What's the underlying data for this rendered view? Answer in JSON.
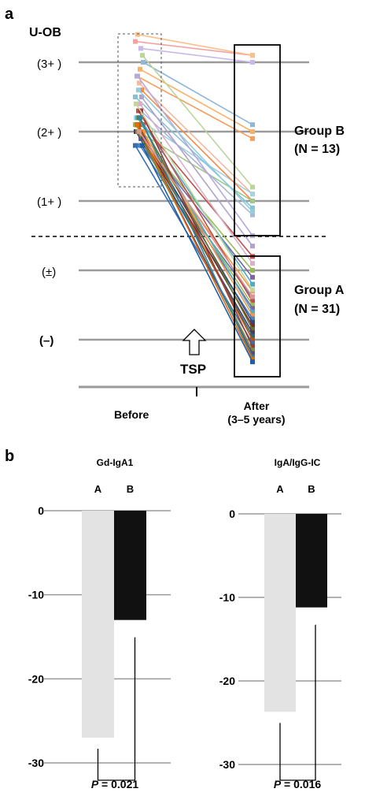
{
  "panel_a": {
    "letter": "a",
    "yaxis_title": "U-OB",
    "levels": [
      "(3+ )",
      "(2+ )",
      "(1+ )",
      "(±)",
      "(–)"
    ],
    "x_categories": [
      "Before",
      "After"
    ],
    "after_sub": "(3–5 years)",
    "tsp_label": "TSP",
    "group_b": {
      "name": "Group B",
      "n": "(N = 13)"
    },
    "group_a": {
      "name": "Group A",
      "n": "(N = 31)"
    }
  },
  "panel_b": {
    "letter": "b"
  },
  "chart_data": [
    {
      "type": "line",
      "title": "",
      "ylabel": "U-OB",
      "categories": [
        "Before",
        "After"
      ],
      "y_scale": [
        "(–)",
        "(±)",
        "(1+ )",
        "(2+ )",
        "(3+ )"
      ],
      "y_numeric": {
        "(–)": 0,
        "(±)": 1,
        "(1+ )": 2,
        "(2+ )": 3,
        "(3+ )": 4
      },
      "series": [
        {
          "values": [
            4.3,
            4.1
          ],
          "color": "#f4a3a3"
        },
        {
          "values": [
            4.2,
            4.0
          ],
          "color": "#c9b8e8"
        },
        {
          "values": [
            4.4,
            4.1
          ],
          "color": "#fbbf8a"
        },
        {
          "values": [
            4.0,
            3.1
          ],
          "color": "#8fb6dc"
        },
        {
          "values": [
            3.9,
            3.0
          ],
          "color": "#fbb06a"
        },
        {
          "values": [
            3.8,
            2.9
          ],
          "color": "#f59d5c"
        },
        {
          "values": [
            4.1,
            2.2
          ],
          "color": "#bcd59a"
        },
        {
          "values": [
            3.7,
            2.1
          ],
          "color": "#f2b8a0"
        },
        {
          "values": [
            3.2,
            2.1
          ],
          "color": "#a6d3e3"
        },
        {
          "values": [
            3.6,
            2.0
          ],
          "color": "#f58a4a"
        },
        {
          "values": [
            3.0,
            2.0
          ],
          "color": "#9fc88a"
        },
        {
          "values": [
            3.5,
            1.9
          ],
          "color": "#86c3d6"
        },
        {
          "values": [
            3.3,
            1.8
          ],
          "color": "#a8b6d8"
        },
        {
          "values": [
            3.8,
            1.5
          ],
          "color": "#b7a9db"
        },
        {
          "values": [
            3.1,
            1.2
          ],
          "color": "#c0504d"
        },
        {
          "values": [
            3.4,
            1.1
          ],
          "color": "#d7b1c8"
        },
        {
          "values": [
            3.0,
            1.0
          ],
          "color": "#9bbb59"
        },
        {
          "values": [
            2.9,
            0.9
          ],
          "color": "#8064a2"
        },
        {
          "values": [
            3.2,
            0.8
          ],
          "color": "#4bacc6"
        },
        {
          "values": [
            3.0,
            0.7
          ],
          "color": "#f79646"
        },
        {
          "values": [
            2.8,
            0.6
          ],
          "color": "#4f81bd"
        },
        {
          "values": [
            3.3,
            0.55
          ],
          "color": "#c0504d"
        },
        {
          "values": [
            3.1,
            0.5
          ],
          "color": "#9bbb59"
        },
        {
          "values": [
            2.9,
            0.45
          ],
          "color": "#8064a2"
        },
        {
          "values": [
            3.2,
            0.4
          ],
          "color": "#4bacc6"
        },
        {
          "values": [
            3.0,
            0.35
          ],
          "color": "#f79646"
        },
        {
          "values": [
            2.8,
            0.3
          ],
          "color": "#4f81bd"
        },
        {
          "values": [
            3.1,
            0.25
          ],
          "color": "#2c4d75"
        },
        {
          "values": [
            2.9,
            0.2
          ],
          "color": "#772c2a"
        },
        {
          "values": [
            3.2,
            0.15
          ],
          "color": "#5f7530"
        },
        {
          "values": [
            3.0,
            0.1
          ],
          "color": "#4d3b62"
        },
        {
          "values": [
            2.9,
            0.05
          ],
          "color": "#276a7c"
        },
        {
          "values": [
            3.1,
            0.0
          ],
          "color": "#b65708"
        },
        {
          "values": [
            2.8,
            -0.05
          ],
          "color": "#3a6db0"
        },
        {
          "values": [
            3.3,
            -0.1
          ],
          "color": "#9d3b39"
        },
        {
          "values": [
            3.0,
            -0.15
          ],
          "color": "#76923c"
        },
        {
          "values": [
            2.9,
            -0.2
          ],
          "color": "#5f497a"
        },
        {
          "values": [
            3.2,
            -0.25
          ],
          "color": "#31859b"
        },
        {
          "values": [
            3.1,
            -0.28
          ],
          "color": "#e36c09"
        },
        {
          "values": [
            2.8,
            -0.32
          ],
          "color": "#1f5fa6"
        },
        {
          "values": [
            3.0,
            0.62
          ],
          "color": "#d99694"
        },
        {
          "values": [
            3.4,
            0.72
          ],
          "color": "#c3d69b"
        },
        {
          "values": [
            3.5,
            1.35
          ],
          "color": "#b3a2c7"
        },
        {
          "values": [
            3.6,
            1.85
          ],
          "color": "#93cddd"
        }
      ],
      "groups": [
        {
          "name": "Group B",
          "n": 13,
          "after_range": [
            1.5,
            4.1
          ]
        },
        {
          "name": "Group A",
          "n": 31,
          "after_range": [
            -0.35,
            1.35
          ]
        }
      ]
    },
    {
      "type": "bar",
      "title": "Gd-IgA1",
      "categories": [
        "A",
        "B"
      ],
      "values": [
        -27,
        -13
      ],
      "colors": [
        "#e3e3e3",
        "#111111"
      ],
      "ylim": [
        -30,
        0
      ],
      "yticks": [
        0,
        -10,
        -20,
        -30
      ],
      "ytick_labels": [
        "0",
        "-10",
        "-20",
        "-30"
      ],
      "pvalue_prefix": "P",
      "pvalue_text": " = 0.021"
    },
    {
      "type": "bar",
      "title": "IgA/IgG-IC",
      "categories": [
        "A",
        "B"
      ],
      "values": [
        -23.7,
        -11.2
      ],
      "colors": [
        "#e3e3e3",
        "#111111"
      ],
      "ylim": [
        -30,
        0
      ],
      "yticks": [
        0,
        -10,
        -20,
        -30
      ],
      "ytick_labels": [
        "0",
        "-10",
        "-20",
        "-30"
      ],
      "pvalue_prefix": "P",
      "pvalue_text": " = 0.016"
    }
  ]
}
